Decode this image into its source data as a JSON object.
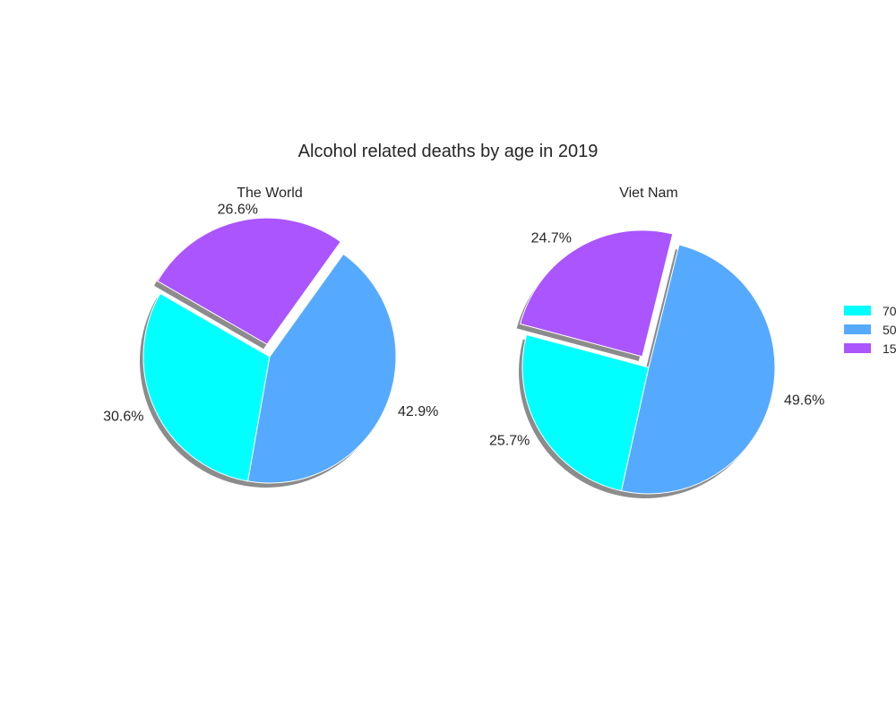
{
  "chart_data": {
    "type": "pie",
    "title": "Alcohol related deaths by age in 2019",
    "legend": {
      "placement": "right",
      "entries": [
        "70",
        "50",
        "15"
      ],
      "colors": [
        "#00ffff",
        "#55aaff",
        "#aa55ff"
      ]
    },
    "shadow": true,
    "explode": [
      0,
      0,
      0.1
    ],
    "charts": [
      {
        "title": "The World",
        "categories": [
          "70",
          "50",
          "15"
        ],
        "values": [
          30.6,
          42.9,
          26.6
        ],
        "labels": [
          "30.6%",
          "42.9%",
          "26.6%"
        ]
      },
      {
        "title": "Viet Nam",
        "categories": [
          "70",
          "50",
          "15"
        ],
        "values": [
          25.7,
          49.6,
          24.7
        ],
        "labels": [
          "25.7%",
          "49.6%",
          "24.7%"
        ]
      }
    ]
  }
}
